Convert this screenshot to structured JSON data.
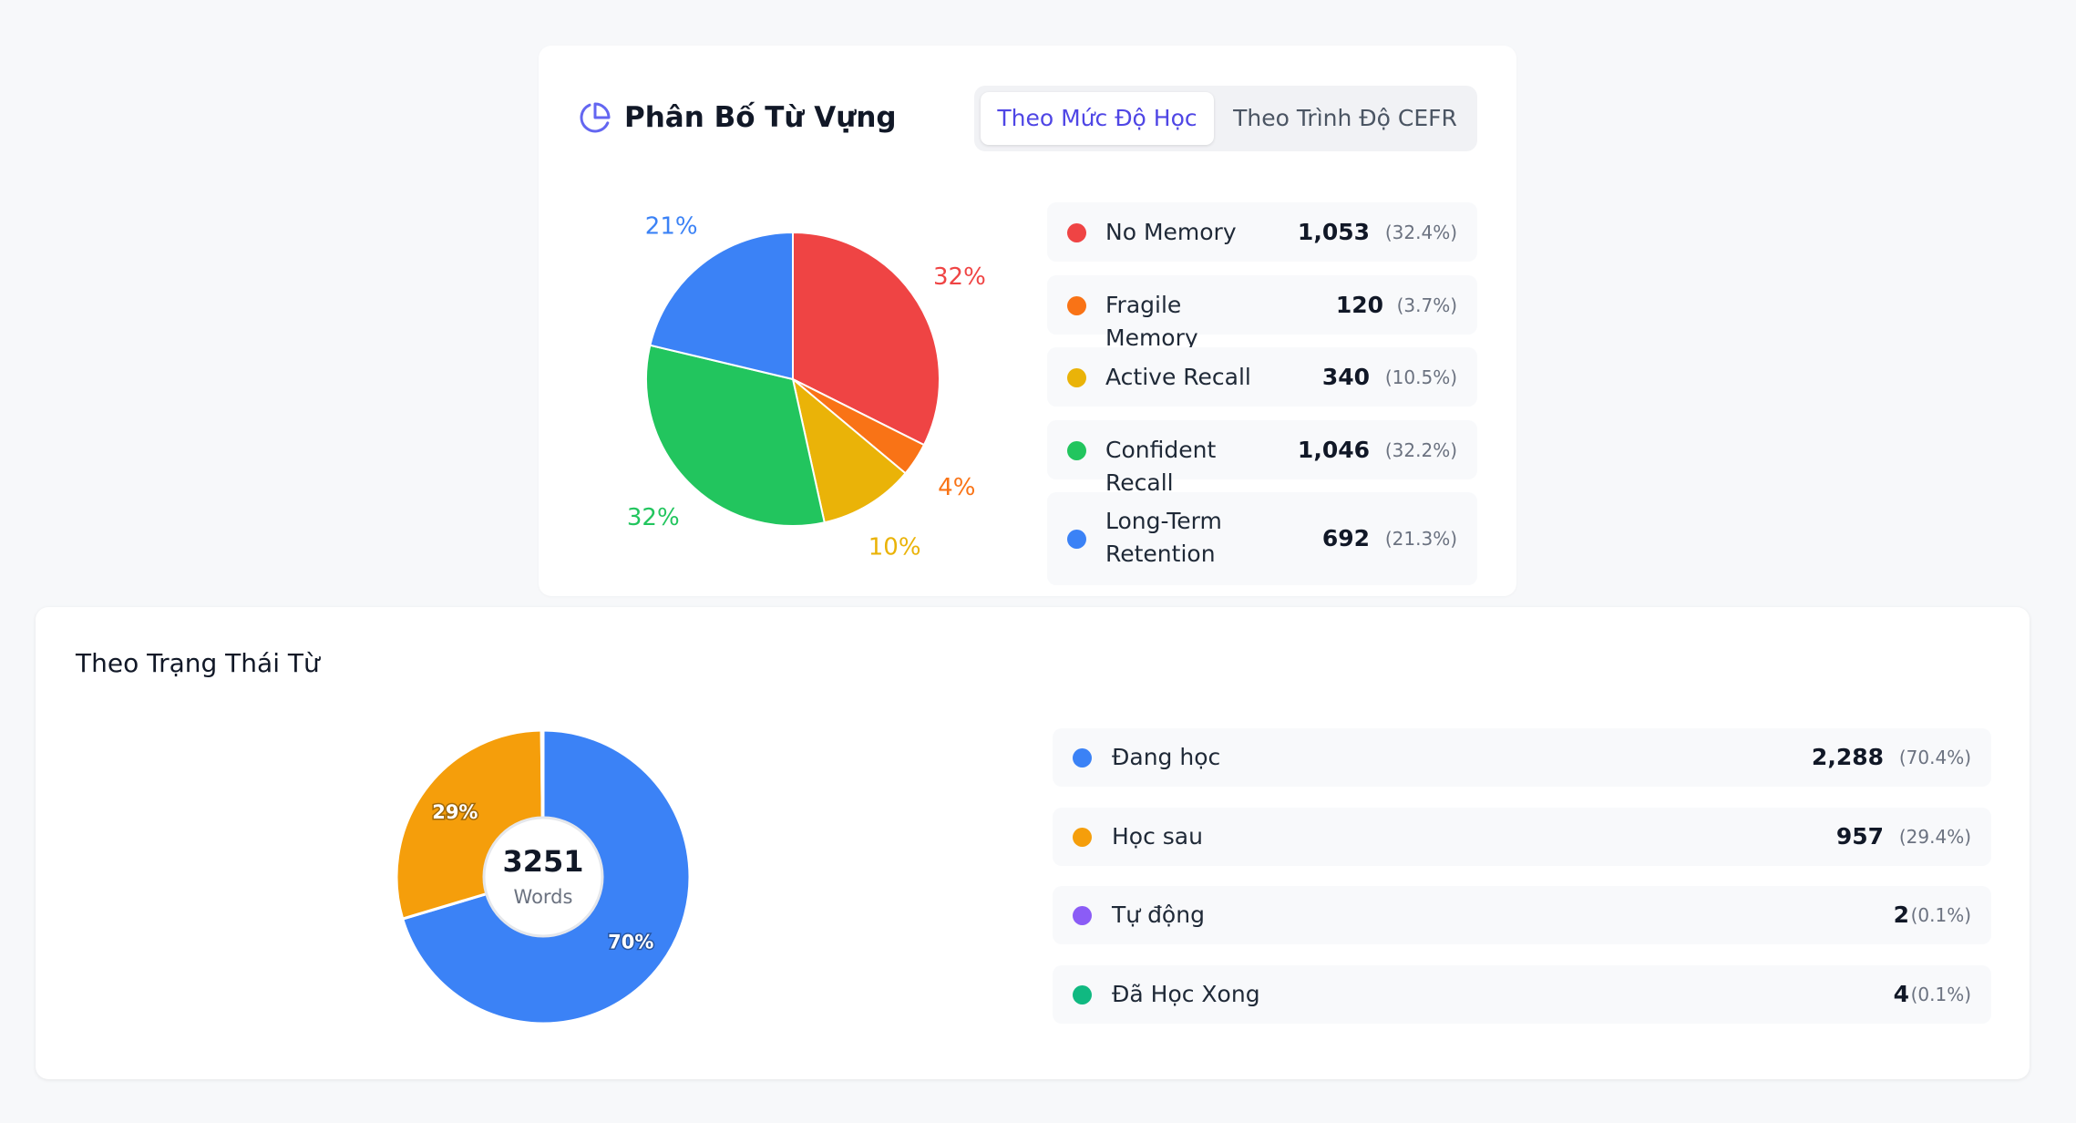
{
  "vocab_card": {
    "title": "Phân Bố Từ Vựng",
    "title_icon": "pie-chart-icon",
    "tabs": [
      {
        "label": "Theo Mức Độ Học",
        "active": true
      },
      {
        "label": "Theo Trình Độ CEFR",
        "active": false
      }
    ],
    "legend": [
      {
        "label": "No Memory",
        "count": "1,053",
        "pct": "(32.4%)",
        "color": "#ef4444"
      },
      {
        "label": "Fragile Memory",
        "count": "120",
        "pct": "(3.7%)",
        "color": "#f97316"
      },
      {
        "label": "Active Recall",
        "count": "340",
        "pct": "(10.5%)",
        "color": "#eab308"
      },
      {
        "label": "Confident Recall",
        "count": "1,046",
        "pct": "(32.2%)",
        "color": "#22c55e"
      },
      {
        "label": "Long-Term Retention",
        "count": "692",
        "pct": "(21.3%)",
        "color": "#3b82f6"
      }
    ]
  },
  "status_card": {
    "title": "Theo Trạng Thái Từ",
    "legend": [
      {
        "label": "Đang học",
        "count": "2,288",
        "pct": "(70.4%)",
        "color": "#3b82f6"
      },
      {
        "label": "Học sau",
        "count": "957",
        "pct": "(29.4%)",
        "color": "#f59e0b"
      },
      {
        "label": "Tự động",
        "count": "2",
        "pct": "(0.1%)",
        "color": "#8b5cf6"
      },
      {
        "label": "Đã Học Xong",
        "count": "4",
        "pct": "(0.1%)",
        "color": "#10b981"
      }
    ]
  },
  "chart_data": [
    {
      "type": "pie",
      "title": "Phân Bố Từ Vựng",
      "categories": [
        "No Memory",
        "Fragile Memory",
        "Active Recall",
        "Confident Recall",
        "Long-Term Retention"
      ],
      "values": [
        1053,
        120,
        340,
        1046,
        692
      ],
      "colors": [
        "#ef4444",
        "#f97316",
        "#eab308",
        "#22c55e",
        "#3b82f6"
      ],
      "labels": [
        "32%",
        "4%",
        "10%",
        "32%",
        "21%"
      ]
    },
    {
      "type": "pie",
      "title": "Theo Trạng Thái Từ",
      "donut": true,
      "center_value": "3251",
      "center_label": "Words",
      "categories": [
        "Đang học",
        "Học sau",
        "Tự động",
        "Đã Học Xong"
      ],
      "values": [
        2288,
        957,
        2,
        4
      ],
      "colors": [
        "#3b82f6",
        "#f59e0b",
        "#8b5cf6",
        "#10b981"
      ],
      "labels": [
        "70%",
        "29%",
        "",
        ""
      ]
    }
  ]
}
